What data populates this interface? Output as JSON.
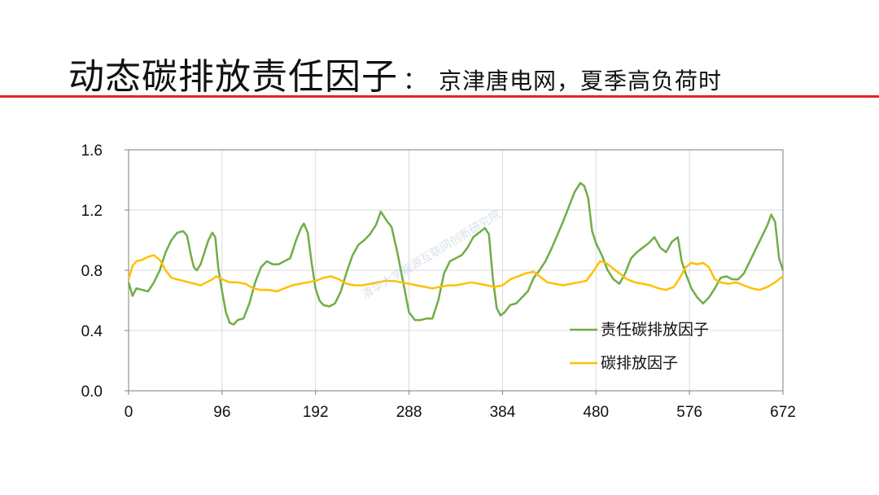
{
  "header": {
    "title": "动态碳排放责任因子",
    "separator": "：",
    "subtitle": "京津唐电网，夏季高负荷时"
  },
  "watermark": "清华大学能源互联网创新研究院",
  "colors": {
    "accent_rule": "#e6202a",
    "responsibility_series": "#70ad47",
    "emission_series": "#ffc000",
    "gridline": "#d9d9d9"
  },
  "chart_data": {
    "type": "line",
    "xlim": [
      0,
      672
    ],
    "ylim": [
      0.0,
      1.6
    ],
    "x_ticks": [
      "0",
      "96",
      "192",
      "288",
      "384",
      "480",
      "576",
      "672"
    ],
    "y_ticks": [
      "0.0",
      "0.4",
      "0.8",
      "1.2",
      "1.6"
    ],
    "grid": true,
    "legend_position": "lower-right",
    "series": [
      {
        "name": "责任碳排放因子",
        "color": "#70ad47",
        "points": [
          [
            0,
            0.72
          ],
          [
            4,
            0.63
          ],
          [
            8,
            0.68
          ],
          [
            14,
            0.67
          ],
          [
            20,
            0.66
          ],
          [
            26,
            0.72
          ],
          [
            32,
            0.8
          ],
          [
            38,
            0.92
          ],
          [
            44,
            1.0
          ],
          [
            50,
            1.05
          ],
          [
            56,
            1.06
          ],
          [
            60,
            1.03
          ],
          [
            64,
            0.9
          ],
          [
            67,
            0.82
          ],
          [
            70,
            0.8
          ],
          [
            74,
            0.84
          ],
          [
            78,
            0.92
          ],
          [
            82,
            1.0
          ],
          [
            86,
            1.05
          ],
          [
            89,
            1.02
          ],
          [
            92,
            0.82
          ],
          [
            96,
            0.66
          ],
          [
            100,
            0.52
          ],
          [
            104,
            0.45
          ],
          [
            108,
            0.44
          ],
          [
            112,
            0.47
          ],
          [
            118,
            0.48
          ],
          [
            124,
            0.58
          ],
          [
            130,
            0.72
          ],
          [
            136,
            0.82
          ],
          [
            142,
            0.86
          ],
          [
            148,
            0.84
          ],
          [
            154,
            0.84
          ],
          [
            160,
            0.86
          ],
          [
            166,
            0.88
          ],
          [
            172,
            1.0
          ],
          [
            177,
            1.08
          ],
          [
            180,
            1.11
          ],
          [
            184,
            1.05
          ],
          [
            188,
            0.85
          ],
          [
            192,
            0.68
          ],
          [
            196,
            0.6
          ],
          [
            200,
            0.57
          ],
          [
            206,
            0.56
          ],
          [
            212,
            0.58
          ],
          [
            218,
            0.66
          ],
          [
            224,
            0.79
          ],
          [
            230,
            0.9
          ],
          [
            236,
            0.97
          ],
          [
            242,
            1.0
          ],
          [
            248,
            1.04
          ],
          [
            254,
            1.1
          ],
          [
            259,
            1.19
          ],
          [
            262,
            1.16
          ],
          [
            266,
            1.12
          ],
          [
            270,
            1.09
          ],
          [
            276,
            0.92
          ],
          [
            282,
            0.72
          ],
          [
            288,
            0.52
          ],
          [
            294,
            0.47
          ],
          [
            300,
            0.47
          ],
          [
            306,
            0.48
          ],
          [
            312,
            0.48
          ],
          [
            318,
            0.6
          ],
          [
            324,
            0.78
          ],
          [
            330,
            0.86
          ],
          [
            336,
            0.88
          ],
          [
            342,
            0.9
          ],
          [
            348,
            0.95
          ],
          [
            354,
            1.02
          ],
          [
            360,
            1.05
          ],
          [
            366,
            1.08
          ],
          [
            370,
            1.04
          ],
          [
            374,
            0.75
          ],
          [
            378,
            0.55
          ],
          [
            382,
            0.5
          ],
          [
            386,
            0.52
          ],
          [
            392,
            0.57
          ],
          [
            398,
            0.58
          ],
          [
            404,
            0.62
          ],
          [
            410,
            0.66
          ],
          [
            416,
            0.75
          ],
          [
            422,
            0.8
          ],
          [
            428,
            0.86
          ],
          [
            434,
            0.94
          ],
          [
            440,
            1.03
          ],
          [
            446,
            1.12
          ],
          [
            452,
            1.22
          ],
          [
            458,
            1.32
          ],
          [
            464,
            1.38
          ],
          [
            468,
            1.36
          ],
          [
            472,
            1.28
          ],
          [
            476,
            1.06
          ],
          [
            480,
            0.98
          ],
          [
            486,
            0.9
          ],
          [
            492,
            0.8
          ],
          [
            498,
            0.74
          ],
          [
            504,
            0.71
          ],
          [
            510,
            0.78
          ],
          [
            516,
            0.88
          ],
          [
            522,
            0.92
          ],
          [
            528,
            0.95
          ],
          [
            534,
            0.98
          ],
          [
            540,
            1.02
          ],
          [
            546,
            0.95
          ],
          [
            552,
            0.92
          ],
          [
            558,
            0.99
          ],
          [
            564,
            1.02
          ],
          [
            568,
            0.86
          ],
          [
            572,
            0.78
          ],
          [
            578,
            0.68
          ],
          [
            584,
            0.62
          ],
          [
            590,
            0.58
          ],
          [
            596,
            0.62
          ],
          [
            602,
            0.68
          ],
          [
            608,
            0.75
          ],
          [
            614,
            0.76
          ],
          [
            620,
            0.74
          ],
          [
            626,
            0.74
          ],
          [
            632,
            0.78
          ],
          [
            638,
            0.86
          ],
          [
            644,
            0.94
          ],
          [
            650,
            1.02
          ],
          [
            656,
            1.1
          ],
          [
            660,
            1.17
          ],
          [
            664,
            1.12
          ],
          [
            668,
            0.88
          ],
          [
            672,
            0.8
          ]
        ]
      },
      {
        "name": "碳排放因子",
        "color": "#ffc000",
        "points": [
          [
            0,
            0.74
          ],
          [
            4,
            0.83
          ],
          [
            8,
            0.86
          ],
          [
            14,
            0.87
          ],
          [
            20,
            0.89
          ],
          [
            26,
            0.9
          ],
          [
            32,
            0.87
          ],
          [
            38,
            0.8
          ],
          [
            44,
            0.75
          ],
          [
            50,
            0.74
          ],
          [
            56,
            0.73
          ],
          [
            62,
            0.72
          ],
          [
            68,
            0.71
          ],
          [
            74,
            0.7
          ],
          [
            80,
            0.72
          ],
          [
            86,
            0.74
          ],
          [
            90,
            0.76
          ],
          [
            96,
            0.74
          ],
          [
            104,
            0.72
          ],
          [
            112,
            0.72
          ],
          [
            120,
            0.71
          ],
          [
            128,
            0.68
          ],
          [
            136,
            0.67
          ],
          [
            144,
            0.67
          ],
          [
            152,
            0.66
          ],
          [
            160,
            0.68
          ],
          [
            168,
            0.7
          ],
          [
            176,
            0.71
          ],
          [
            184,
            0.72
          ],
          [
            192,
            0.73
          ],
          [
            200,
            0.75
          ],
          [
            208,
            0.76
          ],
          [
            216,
            0.74
          ],
          [
            224,
            0.71
          ],
          [
            232,
            0.7
          ],
          [
            240,
            0.7
          ],
          [
            248,
            0.71
          ],
          [
            256,
            0.72
          ],
          [
            264,
            0.73
          ],
          [
            272,
            0.73
          ],
          [
            280,
            0.72
          ],
          [
            288,
            0.71
          ],
          [
            296,
            0.7
          ],
          [
            304,
            0.69
          ],
          [
            312,
            0.68
          ],
          [
            320,
            0.69
          ],
          [
            328,
            0.7
          ],
          [
            336,
            0.7
          ],
          [
            344,
            0.71
          ],
          [
            352,
            0.72
          ],
          [
            360,
            0.71
          ],
          [
            368,
            0.7
          ],
          [
            376,
            0.69
          ],
          [
            384,
            0.7
          ],
          [
            392,
            0.74
          ],
          [
            400,
            0.76
          ],
          [
            408,
            0.78
          ],
          [
            416,
            0.79
          ],
          [
            422,
            0.76
          ],
          [
            430,
            0.72
          ],
          [
            438,
            0.71
          ],
          [
            446,
            0.7
          ],
          [
            454,
            0.71
          ],
          [
            462,
            0.72
          ],
          [
            470,
            0.73
          ],
          [
            478,
            0.8
          ],
          [
            484,
            0.86
          ],
          [
            490,
            0.85
          ],
          [
            496,
            0.82
          ],
          [
            504,
            0.78
          ],
          [
            512,
            0.74
          ],
          [
            520,
            0.72
          ],
          [
            528,
            0.71
          ],
          [
            536,
            0.7
          ],
          [
            544,
            0.68
          ],
          [
            552,
            0.67
          ],
          [
            560,
            0.69
          ],
          [
            566,
            0.75
          ],
          [
            572,
            0.82
          ],
          [
            578,
            0.85
          ],
          [
            584,
            0.84
          ],
          [
            590,
            0.85
          ],
          [
            596,
            0.82
          ],
          [
            602,
            0.74
          ],
          [
            608,
            0.72
          ],
          [
            616,
            0.71
          ],
          [
            624,
            0.72
          ],
          [
            632,
            0.7
          ],
          [
            640,
            0.68
          ],
          [
            648,
            0.67
          ],
          [
            656,
            0.69
          ],
          [
            664,
            0.72
          ],
          [
            672,
            0.76
          ]
        ]
      }
    ]
  }
}
